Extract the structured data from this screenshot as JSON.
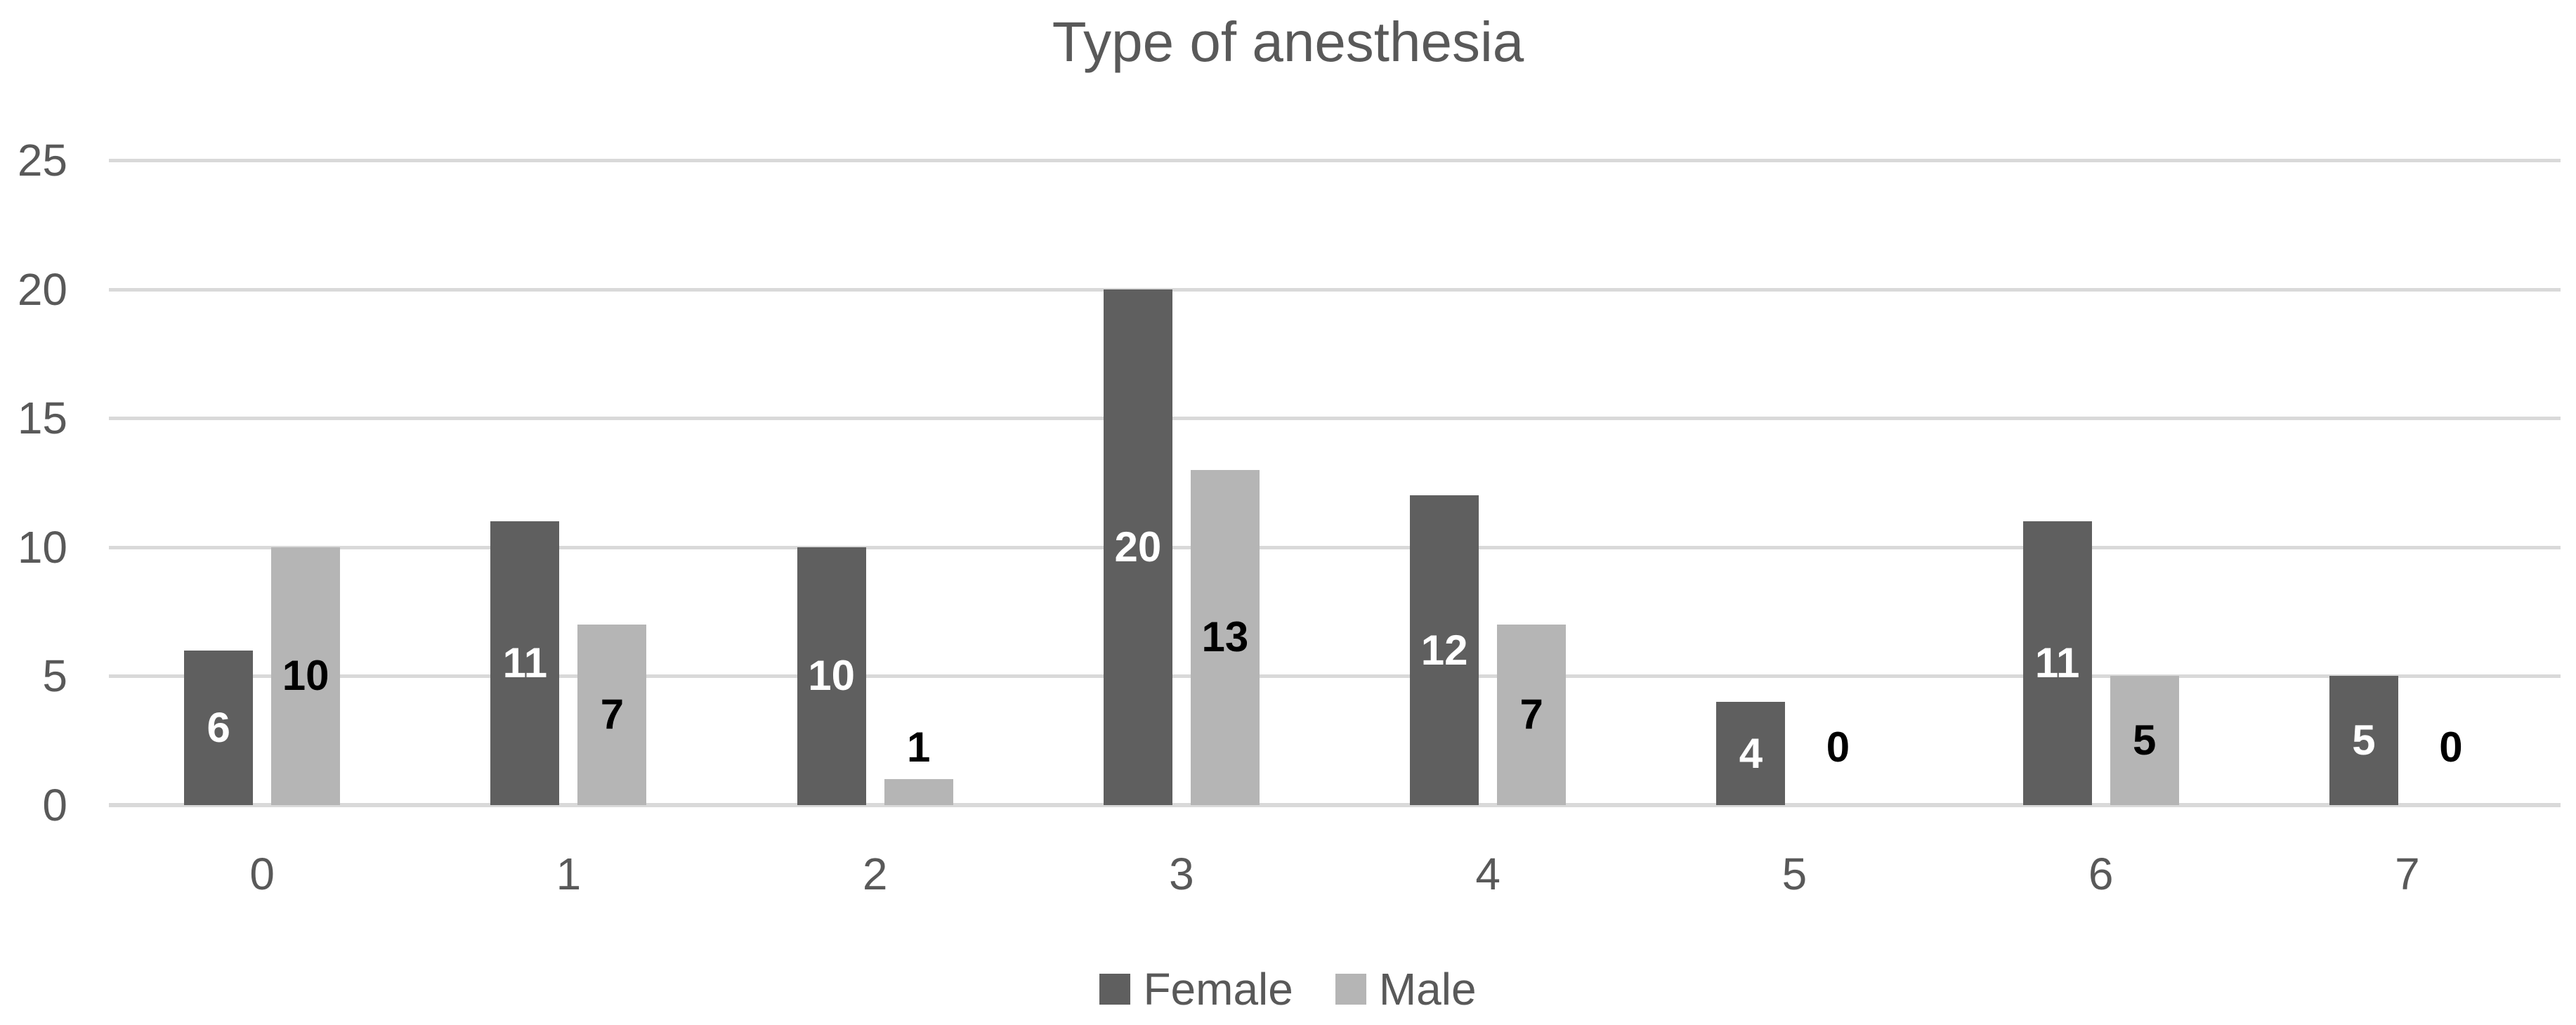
{
  "chart_data": {
    "type": "bar",
    "title": "Type of anesthesia",
    "categories": [
      "0",
      "1",
      "2",
      "3",
      "4",
      "5",
      "6",
      "7"
    ],
    "series": [
      {
        "name": "Female",
        "color": "#5f5f5f",
        "label_color": "#ffffff",
        "values": [
          6,
          11,
          10,
          20,
          12,
          4,
          11,
          5
        ]
      },
      {
        "name": "Male",
        "color": "#b5b5b5",
        "label_color": "#000000",
        "values": [
          10,
          7,
          1,
          13,
          7,
          0,
          5,
          0
        ]
      }
    ],
    "ylim": [
      0,
      25
    ],
    "yticks": [
      0,
      5,
      10,
      15,
      20,
      25
    ],
    "grid": "horizontal",
    "legend_position": "bottom",
    "data_labels": "center",
    "title_color": "#595959",
    "axis_text_color": "#595959",
    "gridline_color": "#d9d9d9",
    "background_color": "#ffffff"
  }
}
